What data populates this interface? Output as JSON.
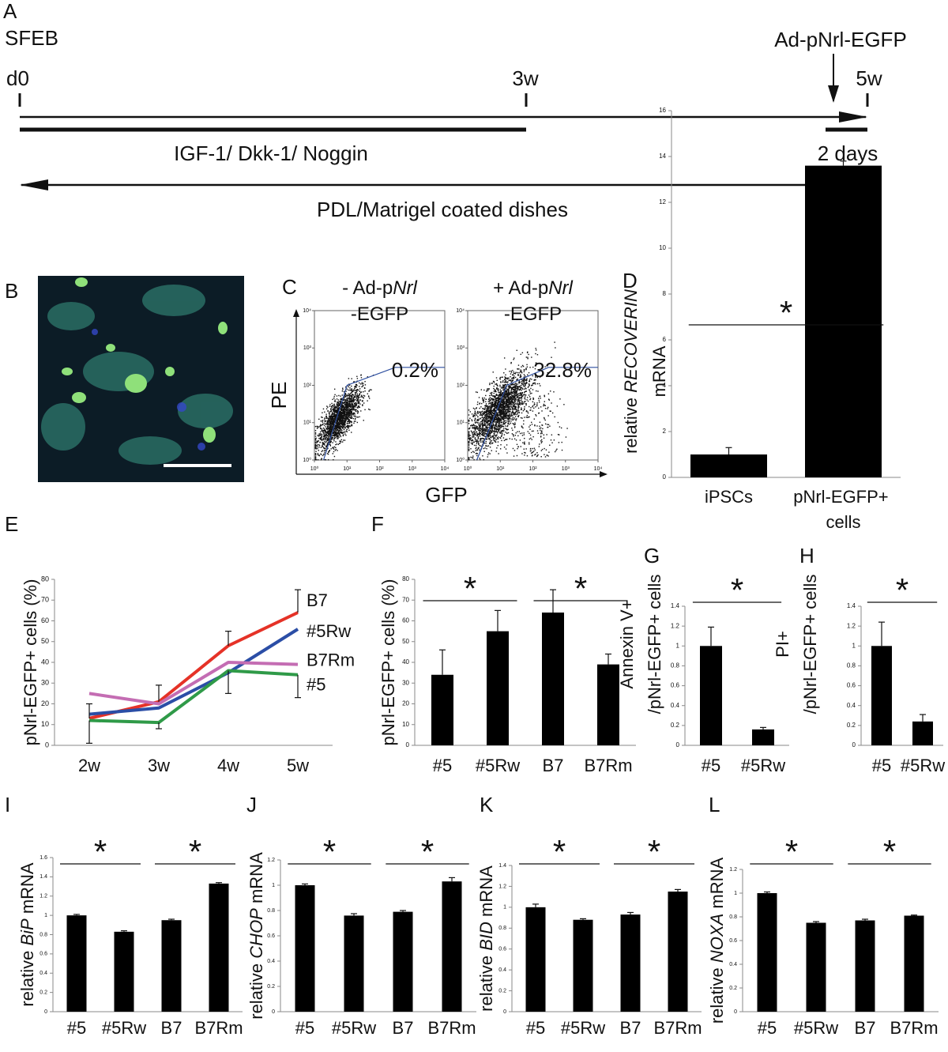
{
  "timeline": {
    "label": "A",
    "start": "SFEB",
    "ticks": [
      "d0",
      "3w",
      "5w"
    ],
    "infection": "Ad-pNrl-EGFP",
    "treatment": "IGF-1/ Dkk-1/ Noggin",
    "infection_duration": "2 days",
    "substrate": "PDL/Matrigel coated dishes"
  },
  "image": {
    "label": "B"
  },
  "chart_data": [
    {
      "type": "bar",
      "label": "D",
      "categories": [
        "iPSCs",
        "pNrl-EGFP+ cells"
      ],
      "values": [
        1.0,
        13.6
      ],
      "errors": [
        0.3,
        0.2
      ],
      "color": "#000000",
      "ylim": [
        0,
        16
      ],
      "yticks": [
        0,
        2,
        4,
        6,
        8,
        10,
        12,
        14,
        16
      ],
      "ylabel": [
        [
          "relative ",
          "RECOVERIN"
        ],
        [
          "mRNA"
        ]
      ],
      "significance": [
        "*"
      ]
    },
    {
      "type": "line",
      "label": "E",
      "categories": [
        "2w",
        "3w",
        "4w",
        "5w"
      ],
      "series": [
        {
          "name": "B7",
          "color": "#e53227",
          "values": [
            13,
            21,
            48,
            64
          ],
          "errors": [
            7,
            8,
            7,
            11
          ],
          "error_side": "up"
        },
        {
          "name": "#5Rw",
          "color": "#2b4ea6",
          "values": [
            15,
            18,
            35,
            56
          ]
        },
        {
          "name": "B7Rm",
          "color": "#c46db3",
          "values": [
            25,
            20,
            40,
            39
          ]
        },
        {
          "name": "#5",
          "color": "#2f9a48",
          "values": [
            12,
            11,
            36,
            34
          ],
          "errors": [
            11,
            3,
            11,
            11
          ],
          "error_side": "down"
        }
      ],
      "ylim": [
        0,
        80
      ],
      "yticks": [
        0,
        10,
        20,
        30,
        40,
        50,
        60,
        70,
        80
      ],
      "ylabel": [
        [
          "pNrl-EGFP+ cells (%)"
        ]
      ]
    },
    {
      "type": "bar",
      "label": "F",
      "categories": [
        "#5",
        "#5Rw",
        "B7",
        "B7Rm"
      ],
      "values": [
        34,
        55,
        64,
        39
      ],
      "errors": [
        12,
        10,
        11,
        5
      ],
      "color": "#000000",
      "ylim": [
        0,
        80
      ],
      "yticks": [
        0,
        10,
        20,
        30,
        40,
        50,
        60,
        70,
        80
      ],
      "ylabel": [
        [
          "pNrl-EGFP+ cells (%)"
        ]
      ],
      "significance": [
        "*",
        "*"
      ]
    },
    {
      "type": "bar",
      "label": "G",
      "categories": [
        "#5",
        "#5Rw"
      ],
      "values": [
        1.0,
        0.16
      ],
      "errors": [
        0.19,
        0.02
      ],
      "color": "#000000",
      "ylim": [
        0,
        1.4
      ],
      "yticks": [
        0,
        0.2,
        0.4,
        0.6,
        0.8,
        1,
        1.2,
        1.4
      ],
      "ylabel": [
        [
          "Annexin V+"
        ],
        [
          "/pNrl-EGFP+ cells"
        ]
      ],
      "significance": [
        "*"
      ]
    },
    {
      "type": "bar",
      "label": "H",
      "categories": [
        "#5",
        "#5Rw"
      ],
      "values": [
        1.0,
        0.24
      ],
      "errors": [
        0.24,
        0.07
      ],
      "color": "#000000",
      "ylim": [
        0,
        1.4
      ],
      "yticks": [
        0,
        0.2,
        0.4,
        0.6,
        0.8,
        1,
        1.2,
        1.4
      ],
      "ylabel": [
        [
          "PI+"
        ],
        [
          "/pNrl-EGFP+ cells"
        ]
      ],
      "significance": [
        "*"
      ]
    },
    {
      "type": "bar",
      "label": "I",
      "categories": [
        "#5",
        "#5Rw",
        "B7",
        "B7Rm"
      ],
      "values": [
        1.0,
        0.83,
        0.95,
        1.33
      ],
      "errors": [
        0.01,
        0.01,
        0.01,
        0.01
      ],
      "color": "#000000",
      "ylim": [
        0,
        1.6
      ],
      "yticks": [
        0,
        0.2,
        0.4,
        0.6,
        0.8,
        1,
        1.2,
        1.4,
        1.6
      ],
      "ylabel": [
        [
          "relative ",
          "BiP",
          " mRNA"
        ]
      ],
      "significance": [
        "*",
        "*"
      ]
    },
    {
      "type": "bar",
      "label": "J",
      "categories": [
        "#5",
        "#5Rw",
        "B7",
        "B7Rm"
      ],
      "values": [
        1.0,
        0.76,
        0.79,
        1.03
      ],
      "errors": [
        0.01,
        0.015,
        0.01,
        0.03
      ],
      "color": "#000000",
      "ylim": [
        0,
        1.2
      ],
      "yticks": [
        0,
        0.2,
        0.4,
        0.6,
        0.8,
        1,
        1.2
      ],
      "ylabel": [
        [
          "relative ",
          "CHOP",
          " mRNA"
        ]
      ],
      "significance": [
        "*",
        "*"
      ]
    },
    {
      "type": "bar",
      "label": "K",
      "categories": [
        "#5",
        "#5Rw",
        "B7",
        "B7Rm"
      ],
      "values": [
        1.0,
        0.88,
        0.93,
        1.15
      ],
      "errors": [
        0.03,
        0.01,
        0.02,
        0.02
      ],
      "color": "#000000",
      "ylim": [
        0,
        1.4
      ],
      "yticks": [
        0,
        0.2,
        0.4,
        0.6,
        0.8,
        1,
        1.2,
        1.4
      ],
      "ylabel": [
        [
          "relative ",
          "BID",
          " mRNA"
        ]
      ],
      "significance": [
        "*",
        "*"
      ]
    },
    {
      "type": "bar",
      "label": "L",
      "categories": [
        "#5",
        "#5Rw",
        "B7",
        "B7Rm"
      ],
      "values": [
        1.0,
        0.75,
        0.77,
        0.81
      ],
      "errors": [
        0.01,
        0.01,
        0.01,
        0.005
      ],
      "color": "#000000",
      "ylim": [
        0,
        1.2
      ],
      "yticks": [
        0,
        0.2,
        0.4,
        0.6,
        0.8,
        1,
        1.2
      ],
      "ylabel": [
        [
          "relative ",
          "NOXA",
          " mRNA"
        ]
      ],
      "significance": [
        "*",
        "*"
      ]
    },
    {
      "type": "flow",
      "label": "C",
      "xlabel": "GFP",
      "ylabel": "PE",
      "log_scale": true,
      "gate_color": "#2e4fa0",
      "xlim": [
        1,
        10000
      ],
      "ylim": [
        1,
        10000
      ],
      "xticks": [
        {
          "value": 1,
          "label": "10⁰"
        },
        {
          "value": 10,
          "label": "10¹"
        },
        {
          "value": 100,
          "label": "10²"
        },
        {
          "value": 1000,
          "label": "10³"
        },
        {
          "value": 10000,
          "label": "10⁴"
        }
      ],
      "yticks": [
        {
          "value": 1,
          "label": "10⁰"
        },
        {
          "value": 10,
          "label": "10¹"
        },
        {
          "value": 100,
          "label": "10²"
        },
        {
          "value": 1000,
          "label": "10³"
        },
        {
          "value": 10000,
          "label": "10⁴"
        }
      ],
      "panels": [
        {
          "title": [
            [
              "- Ad-p",
              "Nrl"
            ],
            [
              "-EGFP"
            ]
          ],
          "annotation": "0.2%"
        },
        {
          "title": [
            [
              "+ Ad-p",
              "Nrl"
            ],
            [
              "-EGFP"
            ]
          ],
          "annotation": "32.8%"
        }
      ]
    }
  ]
}
